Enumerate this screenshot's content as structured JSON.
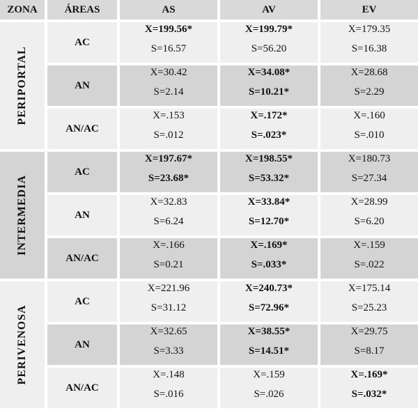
{
  "header": [
    "ZONA",
    "ÁREAS",
    "AS",
    "AV",
    "EV"
  ],
  "zones": [
    {
      "name": "PERIPORTAL",
      "rows": [
        {
          "area": "AC",
          "cells": [
            {
              "lines": [
                "X=199.56*",
                "S=16.57"
              ],
              "bold": [
                true,
                false
              ]
            },
            {
              "lines": [
                "X=199.79*",
                "S=56.20"
              ],
              "bold": [
                true,
                false
              ]
            },
            {
              "lines": [
                "X=179.35",
                "S=16.38"
              ],
              "bold": [
                false,
                false
              ]
            }
          ]
        },
        {
          "area": "AN",
          "cells": [
            {
              "lines": [
                "X=30.42",
                "S=2.14"
              ],
              "bold": [
                false,
                false
              ]
            },
            {
              "lines": [
                "X=34.08*",
                "S=10.21*"
              ],
              "bold": [
                true,
                true
              ]
            },
            {
              "lines": [
                "X=28.68",
                "S=2.29"
              ],
              "bold": [
                false,
                false
              ]
            }
          ]
        },
        {
          "area": "AN/AC",
          "cells": [
            {
              "lines": [
                "X=.153",
                "S=.012"
              ],
              "bold": [
                false,
                false
              ]
            },
            {
              "lines": [
                "X=.172*",
                "S=.023*"
              ],
              "bold": [
                true,
                true
              ]
            },
            {
              "lines": [
                "X=.160",
                "S=.010"
              ],
              "bold": [
                false,
                false
              ]
            }
          ]
        }
      ]
    },
    {
      "name": "INTERMEDIA",
      "rows": [
        {
          "area": "AC",
          "cells": [
            {
              "lines": [
                "X=197.67*",
                "S=23.68*"
              ],
              "bold": [
                true,
                true
              ]
            },
            {
              "lines": [
                "X=198.55*",
                "S=53.32*"
              ],
              "bold": [
                true,
                true
              ]
            },
            {
              "lines": [
                "X=180.73",
                "S=27.34"
              ],
              "bold": [
                false,
                false
              ]
            }
          ]
        },
        {
          "area": "AN",
          "cells": [
            {
              "lines": [
                "X=32.83",
                "S=6.24"
              ],
              "bold": [
                false,
                false
              ]
            },
            {
              "lines": [
                "X=33.84*",
                "S=12.70*"
              ],
              "bold": [
                true,
                true
              ]
            },
            {
              "lines": [
                "X=28.99",
                "S=6.20"
              ],
              "bold": [
                false,
                false
              ]
            }
          ]
        },
        {
          "area": "AN/AC",
          "cells": [
            {
              "lines": [
                "X=.166",
                "S=0.21"
              ],
              "bold": [
                false,
                false
              ]
            },
            {
              "lines": [
                "X=.169*",
                "S=.033*"
              ],
              "bold": [
                true,
                true
              ]
            },
            {
              "lines": [
                "X=.159",
                "S=.022"
              ],
              "bold": [
                false,
                false
              ]
            }
          ]
        }
      ]
    },
    {
      "name": "PERIVENOSA",
      "rows": [
        {
          "area": "AC",
          "cells": [
            {
              "lines": [
                "X=221.96",
                "S=31.12"
              ],
              "bold": [
                false,
                false
              ]
            },
            {
              "lines": [
                "X=240.73*",
                "S=72.96*"
              ],
              "bold": [
                true,
                true
              ]
            },
            {
              "lines": [
                "X=175.14",
                "S=25.23"
              ],
              "bold": [
                false,
                false
              ]
            }
          ]
        },
        {
          "area": "AN",
          "cells": [
            {
              "lines": [
                "X=32.65",
                "S=3.33"
              ],
              "bold": [
                false,
                false
              ]
            },
            {
              "lines": [
                "X=38.55*",
                "S=14.51*"
              ],
              "bold": [
                true,
                true
              ]
            },
            {
              "lines": [
                "X=29.75",
                "S=8.17"
              ],
              "bold": [
                false,
                false
              ]
            }
          ]
        },
        {
          "area": "AN/AC",
          "cells": [
            {
              "lines": [
                "X=.148",
                "S=.016"
              ],
              "bold": [
                false,
                false
              ]
            },
            {
              "lines": [
                "X=.159",
                "S=.026"
              ],
              "bold": [
                false,
                false
              ]
            },
            {
              "lines": [
                "X=.169*",
                "S=.032*"
              ],
              "bold": [
                true,
                true
              ]
            }
          ]
        }
      ]
    }
  ]
}
